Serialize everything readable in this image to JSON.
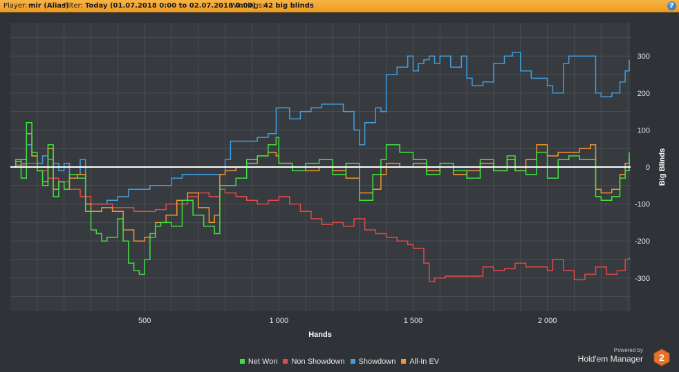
{
  "header": {
    "player_label": "Player:",
    "player_value": "mir (Alias)",
    "filter_label": "Filter:",
    "filter_value": "Today (01.07.2018 0:00 to 02.07.2018 0:00)",
    "winnings_label": "Winnings:",
    "winnings_value": "42 big blinds",
    "help_label": "?"
  },
  "branding": {
    "powered_by": "Powered by",
    "product": "Hold'em Manager",
    "logo_digit": "2"
  },
  "colors": {
    "net_won": "#3fe03f",
    "non_showdown": "#e04a4a",
    "showdown": "#3f9fe0",
    "all_in_ev": "#f0962e",
    "zero_line": "#ffffff",
    "grid": "#4a4f55",
    "plot_bg": "#373b40"
  },
  "chart_data": {
    "type": "line",
    "title": "",
    "xlabel": "Hands",
    "ylabel": "Big Blinds",
    "xlim": [
      0,
      2310
    ],
    "ylim": [
      -390,
      390
    ],
    "x_ticks": [
      500,
      1000,
      1500,
      2000
    ],
    "x_tick_labels": [
      "500",
      "1 000",
      "1 500",
      "2 000"
    ],
    "y_ticks": [
      300,
      200,
      100,
      0,
      -100,
      -200,
      -300
    ],
    "y_tick_labels": [
      "300",
      "200",
      "100",
      "0",
      "-100",
      "-200",
      "-300"
    ],
    "grid": true,
    "legend_position": "bottom",
    "series": [
      {
        "name": "Net Won",
        "color": "#3fe03f",
        "points": [
          [
            0,
            0
          ],
          [
            20,
            20
          ],
          [
            40,
            -30
          ],
          [
            60,
            120
          ],
          [
            80,
            40
          ],
          [
            100,
            -10
          ],
          [
            120,
            -50
          ],
          [
            140,
            60
          ],
          [
            160,
            -80
          ],
          [
            180,
            -40
          ],
          [
            200,
            -60
          ],
          [
            220,
            -20
          ],
          [
            250,
            -30
          ],
          [
            280,
            -120
          ],
          [
            300,
            -170
          ],
          [
            320,
            -180
          ],
          [
            340,
            -200
          ],
          [
            360,
            -190
          ],
          [
            400,
            -140
          ],
          [
            420,
            -200
          ],
          [
            440,
            -260
          ],
          [
            460,
            -280
          ],
          [
            480,
            -290
          ],
          [
            500,
            -250
          ],
          [
            520,
            -180
          ],
          [
            540,
            -160
          ],
          [
            560,
            -150
          ],
          [
            600,
            -160
          ],
          [
            640,
            -90
          ],
          [
            680,
            -130
          ],
          [
            720,
            -160
          ],
          [
            760,
            -180
          ],
          [
            780,
            -50
          ],
          [
            800,
            -50
          ],
          [
            840,
            -30
          ],
          [
            880,
            20
          ],
          [
            920,
            30
          ],
          [
            960,
            60
          ],
          [
            990,
            80
          ],
          [
            1000,
            10
          ],
          [
            1050,
            -10
          ],
          [
            1100,
            10
          ],
          [
            1150,
            20
          ],
          [
            1200,
            -20
          ],
          [
            1250,
            10
          ],
          [
            1300,
            -90
          ],
          [
            1350,
            -20
          ],
          [
            1380,
            20
          ],
          [
            1400,
            60
          ],
          [
            1450,
            40
          ],
          [
            1500,
            20
          ],
          [
            1550,
            -20
          ],
          [
            1600,
            10
          ],
          [
            1650,
            -10
          ],
          [
            1700,
            -30
          ],
          [
            1750,
            20
          ],
          [
            1800,
            -10
          ],
          [
            1850,
            30
          ],
          [
            1880,
            -10
          ],
          [
            1920,
            -20
          ],
          [
            1960,
            40
          ],
          [
            2000,
            -30
          ],
          [
            2040,
            20
          ],
          [
            2080,
            30
          ],
          [
            2120,
            20
          ],
          [
            2160,
            20
          ],
          [
            2180,
            -80
          ],
          [
            2200,
            -90
          ],
          [
            2240,
            -80
          ],
          [
            2270,
            -30
          ],
          [
            2290,
            -10
          ],
          [
            2305,
            40
          ]
        ]
      },
      {
        "name": "Non Showdown",
        "color": "#e04a4a",
        "points": [
          [
            0,
            0
          ],
          [
            20,
            5
          ],
          [
            60,
            10
          ],
          [
            100,
            -10
          ],
          [
            140,
            -30
          ],
          [
            180,
            -40
          ],
          [
            220,
            -60
          ],
          [
            260,
            -80
          ],
          [
            300,
            -100
          ],
          [
            340,
            -100
          ],
          [
            380,
            -110
          ],
          [
            420,
            -110
          ],
          [
            460,
            -120
          ],
          [
            500,
            -120
          ],
          [
            540,
            -115
          ],
          [
            580,
            -100
          ],
          [
            620,
            -100
          ],
          [
            660,
            -80
          ],
          [
            700,
            -70
          ],
          [
            740,
            -80
          ],
          [
            780,
            -60
          ],
          [
            800,
            -70
          ],
          [
            840,
            -80
          ],
          [
            880,
            -90
          ],
          [
            920,
            -100
          ],
          [
            960,
            -90
          ],
          [
            1000,
            -80
          ],
          [
            1040,
            -100
          ],
          [
            1080,
            -120
          ],
          [
            1120,
            -140
          ],
          [
            1160,
            -155
          ],
          [
            1200,
            -150
          ],
          [
            1240,
            -160
          ],
          [
            1280,
            -140
          ],
          [
            1320,
            -170
          ],
          [
            1360,
            -180
          ],
          [
            1400,
            -190
          ],
          [
            1440,
            -200
          ],
          [
            1480,
            -210
          ],
          [
            1500,
            -220
          ],
          [
            1540,
            -260
          ],
          [
            1560,
            -310
          ],
          [
            1580,
            -300
          ],
          [
            1620,
            -295
          ],
          [
            1700,
            -295
          ],
          [
            1760,
            -270
          ],
          [
            1800,
            -280
          ],
          [
            1840,
            -275
          ],
          [
            1880,
            -260
          ],
          [
            1920,
            -270
          ],
          [
            1960,
            -270
          ],
          [
            2000,
            -280
          ],
          [
            2020,
            -250
          ],
          [
            2060,
            -280
          ],
          [
            2100,
            -305
          ],
          [
            2140,
            -290
          ],
          [
            2180,
            -270
          ],
          [
            2220,
            -290
          ],
          [
            2260,
            -280
          ],
          [
            2290,
            -250
          ],
          [
            2305,
            -245
          ]
        ]
      },
      {
        "name": "Showdown",
        "color": "#3f9fe0",
        "points": [
          [
            0,
            0
          ],
          [
            40,
            10
          ],
          [
            60,
            60
          ],
          [
            80,
            30
          ],
          [
            100,
            10
          ],
          [
            120,
            30
          ],
          [
            140,
            20
          ],
          [
            160,
            10
          ],
          [
            180,
            -10
          ],
          [
            200,
            10
          ],
          [
            220,
            -20
          ],
          [
            260,
            20
          ],
          [
            280,
            -100
          ],
          [
            320,
            -100
          ],
          [
            360,
            -90
          ],
          [
            400,
            -80
          ],
          [
            440,
            -60
          ],
          [
            480,
            -60
          ],
          [
            520,
            -50
          ],
          [
            560,
            -50
          ],
          [
            600,
            -30
          ],
          [
            640,
            -20
          ],
          [
            700,
            -20
          ],
          [
            760,
            -20
          ],
          [
            780,
            -20
          ],
          [
            800,
            20
          ],
          [
            820,
            70
          ],
          [
            840,
            70
          ],
          [
            880,
            70
          ],
          [
            920,
            80
          ],
          [
            960,
            90
          ],
          [
            990,
            160
          ],
          [
            1000,
            160
          ],
          [
            1040,
            130
          ],
          [
            1080,
            150
          ],
          [
            1120,
            160
          ],
          [
            1160,
            170
          ],
          [
            1200,
            170
          ],
          [
            1240,
            150
          ],
          [
            1280,
            100
          ],
          [
            1300,
            60
          ],
          [
            1320,
            120
          ],
          [
            1360,
            160
          ],
          [
            1380,
            150
          ],
          [
            1400,
            250
          ],
          [
            1440,
            270
          ],
          [
            1480,
            300
          ],
          [
            1500,
            260
          ],
          [
            1520,
            280
          ],
          [
            1540,
            290
          ],
          [
            1560,
            300
          ],
          [
            1580,
            280
          ],
          [
            1600,
            300
          ],
          [
            1640,
            270
          ],
          [
            1680,
            300
          ],
          [
            1700,
            240
          ],
          [
            1720,
            220
          ],
          [
            1760,
            230
          ],
          [
            1800,
            280
          ],
          [
            1840,
            300
          ],
          [
            1870,
            310
          ],
          [
            1900,
            260
          ],
          [
            1940,
            240
          ],
          [
            1960,
            240
          ],
          [
            2000,
            220
          ],
          [
            2020,
            200
          ],
          [
            2060,
            280
          ],
          [
            2080,
            300
          ],
          [
            2120,
            300
          ],
          [
            2160,
            300
          ],
          [
            2180,
            200
          ],
          [
            2200,
            190
          ],
          [
            2240,
            200
          ],
          [
            2270,
            230
          ],
          [
            2290,
            260
          ],
          [
            2305,
            290
          ]
        ]
      },
      {
        "name": "All-In EV",
        "color": "#f0962e",
        "points": [
          [
            0,
            0
          ],
          [
            20,
            15
          ],
          [
            40,
            20
          ],
          [
            60,
            90
          ],
          [
            80,
            30
          ],
          [
            100,
            -10
          ],
          [
            120,
            -40
          ],
          [
            140,
            50
          ],
          [
            160,
            -60
          ],
          [
            180,
            -40
          ],
          [
            200,
            -60
          ],
          [
            220,
            -30
          ],
          [
            250,
            -20
          ],
          [
            280,
            -100
          ],
          [
            300,
            -120
          ],
          [
            340,
            -110
          ],
          [
            380,
            -120
          ],
          [
            420,
            -170
          ],
          [
            460,
            -200
          ],
          [
            500,
            -190
          ],
          [
            540,
            -150
          ],
          [
            580,
            -130
          ],
          [
            620,
            -90
          ],
          [
            660,
            -70
          ],
          [
            700,
            -110
          ],
          [
            740,
            -150
          ],
          [
            760,
            -130
          ],
          [
            780,
            -20
          ],
          [
            800,
            -10
          ],
          [
            840,
            0
          ],
          [
            880,
            10
          ],
          [
            920,
            30
          ],
          [
            960,
            40
          ],
          [
            990,
            30
          ],
          [
            1000,
            10
          ],
          [
            1050,
            0
          ],
          [
            1100,
            -10
          ],
          [
            1150,
            0
          ],
          [
            1200,
            -10
          ],
          [
            1250,
            -30
          ],
          [
            1300,
            -70
          ],
          [
            1350,
            -60
          ],
          [
            1380,
            -20
          ],
          [
            1400,
            10
          ],
          [
            1450,
            0
          ],
          [
            1500,
            10
          ],
          [
            1550,
            -10
          ],
          [
            1600,
            0
          ],
          [
            1650,
            -20
          ],
          [
            1700,
            -10
          ],
          [
            1750,
            10
          ],
          [
            1800,
            -10
          ],
          [
            1850,
            20
          ],
          [
            1880,
            -10
          ],
          [
            1920,
            20
          ],
          [
            1960,
            60
          ],
          [
            2000,
            30
          ],
          [
            2040,
            40
          ],
          [
            2080,
            40
          ],
          [
            2120,
            50
          ],
          [
            2160,
            60
          ],
          [
            2180,
            -60
          ],
          [
            2200,
            -70
          ],
          [
            2240,
            -60
          ],
          [
            2270,
            -20
          ],
          [
            2290,
            10
          ],
          [
            2305,
            20
          ]
        ]
      }
    ]
  }
}
